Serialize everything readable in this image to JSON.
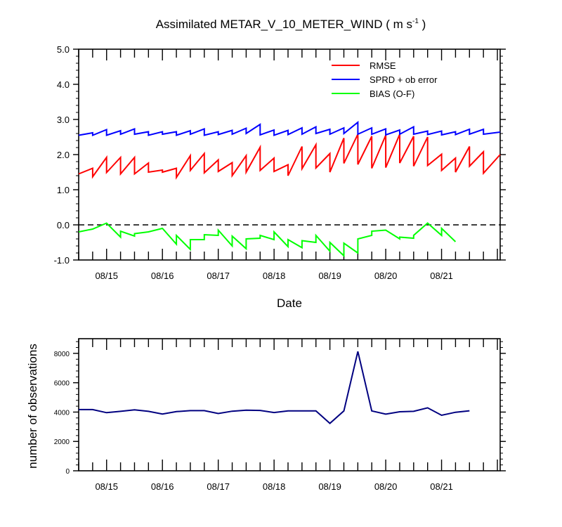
{
  "chart_data": [
    {
      "type": "line",
      "title": "Assimilated METAR_V_10_METER_WIND ( m s",
      "title_sup": "-1",
      "title_end": " )",
      "xlabel": "Date",
      "ylabel": "",
      "x_tick_labels": [
        "08/15",
        "08/16",
        "08/17",
        "08/18",
        "08/19",
        "08/20",
        "08/21"
      ],
      "y_tick_labels": [
        "-1.0",
        "0.0",
        "1.0",
        "2.0",
        "3.0",
        "4.0",
        "5.0"
      ],
      "ylim": [
        -1.0,
        5.0
      ],
      "zero_line": "dashed",
      "legend_position": "top-right",
      "series": [
        {
          "name": "RMSE",
          "color": "#ff0000",
          "points": [
            [
              0.0,
              1.45
            ],
            [
              0.25,
              1.61
            ],
            [
              0.25,
              1.37
            ],
            [
              0.5,
              1.92
            ],
            [
              0.5,
              1.49
            ],
            [
              0.75,
              1.92
            ],
            [
              0.75,
              1.45
            ],
            [
              1.0,
              1.92
            ],
            [
              1.0,
              1.45
            ],
            [
              1.25,
              1.76
            ],
            [
              1.25,
              1.5
            ],
            [
              1.5,
              1.56
            ],
            [
              1.5,
              1.5
            ],
            [
              1.75,
              1.61
            ],
            [
              1.75,
              1.35
            ],
            [
              2.0,
              1.97
            ],
            [
              2.0,
              1.55
            ],
            [
              2.25,
              2.03
            ],
            [
              2.25,
              1.48
            ],
            [
              2.5,
              1.85
            ],
            [
              2.5,
              1.52
            ],
            [
              2.75,
              1.77
            ],
            [
              2.75,
              1.4
            ],
            [
              3.0,
              1.97
            ],
            [
              3.0,
              1.5
            ],
            [
              3.25,
              2.21
            ],
            [
              3.25,
              1.55
            ],
            [
              3.5,
              1.9
            ],
            [
              3.5,
              1.52
            ],
            [
              3.75,
              1.71
            ],
            [
              3.75,
              1.4
            ],
            [
              4.0,
              2.23
            ],
            [
              4.0,
              1.6
            ],
            [
              4.25,
              2.28
            ],
            [
              4.25,
              1.62
            ],
            [
              4.5,
              2.03
            ],
            [
              4.5,
              1.5
            ],
            [
              4.75,
              2.47
            ],
            [
              4.75,
              1.75
            ],
            [
              5.0,
              2.58
            ],
            [
              5.0,
              1.72
            ],
            [
              5.25,
              2.52
            ],
            [
              5.25,
              1.61
            ],
            [
              5.5,
              2.55
            ],
            [
              5.5,
              1.63
            ],
            [
              5.75,
              2.58
            ],
            [
              5.75,
              1.76
            ],
            [
              6.0,
              2.52
            ],
            [
              6.0,
              1.67
            ],
            [
              6.25,
              2.5
            ],
            [
              6.25,
              1.69
            ],
            [
              6.5,
              2.01
            ],
            [
              6.5,
              1.55
            ],
            [
              6.75,
              1.9
            ],
            [
              6.75,
              1.5
            ],
            [
              7.0,
              2.23
            ],
            [
              7.0,
              1.67
            ],
            [
              7.25,
              2.08
            ],
            [
              7.25,
              1.47
            ],
            [
              7.55,
              2.0
            ]
          ]
        },
        {
          "name": "SPRD + ob error",
          "color": "#0000ff",
          "points": [
            [
              0.0,
              2.55
            ],
            [
              0.25,
              2.62
            ],
            [
              0.25,
              2.55
            ],
            [
              0.5,
              2.71
            ],
            [
              0.5,
              2.55
            ],
            [
              0.75,
              2.68
            ],
            [
              0.75,
              2.58
            ],
            [
              1.0,
              2.73
            ],
            [
              1.0,
              2.58
            ],
            [
              1.25,
              2.65
            ],
            [
              1.25,
              2.55
            ],
            [
              1.5,
              2.65
            ],
            [
              1.5,
              2.58
            ],
            [
              1.75,
              2.65
            ],
            [
              1.75,
              2.55
            ],
            [
              2.0,
              2.68
            ],
            [
              2.0,
              2.58
            ],
            [
              2.25,
              2.73
            ],
            [
              2.25,
              2.55
            ],
            [
              2.5,
              2.65
            ],
            [
              2.5,
              2.57
            ],
            [
              2.75,
              2.69
            ],
            [
              2.75,
              2.58
            ],
            [
              3.0,
              2.75
            ],
            [
              3.0,
              2.6
            ],
            [
              3.25,
              2.86
            ],
            [
              3.25,
              2.56
            ],
            [
              3.5,
              2.7
            ],
            [
              3.5,
              2.55
            ],
            [
              3.75,
              2.69
            ],
            [
              3.75,
              2.57
            ],
            [
              4.0,
              2.76
            ],
            [
              4.0,
              2.58
            ],
            [
              4.25,
              2.79
            ],
            [
              4.25,
              2.6
            ],
            [
              4.5,
              2.72
            ],
            [
              4.5,
              2.58
            ],
            [
              4.75,
              2.76
            ],
            [
              4.75,
              2.6
            ],
            [
              5.0,
              2.92
            ],
            [
              5.0,
              2.58
            ],
            [
              5.25,
              2.76
            ],
            [
              5.25,
              2.58
            ],
            [
              5.5,
              2.73
            ],
            [
              5.5,
              2.56
            ],
            [
              5.75,
              2.7
            ],
            [
              5.75,
              2.58
            ],
            [
              6.0,
              2.79
            ],
            [
              6.0,
              2.58
            ],
            [
              6.25,
              2.67
            ],
            [
              6.25,
              2.57
            ],
            [
              6.5,
              2.67
            ],
            [
              6.5,
              2.56
            ],
            [
              6.75,
              2.65
            ],
            [
              6.75,
              2.57
            ],
            [
              7.0,
              2.72
            ],
            [
              7.0,
              2.58
            ],
            [
              7.25,
              2.72
            ],
            [
              7.25,
              2.58
            ],
            [
              7.55,
              2.64
            ]
          ]
        },
        {
          "name": "BIAS (O-F)",
          "color": "#00ff00",
          "points": [
            [
              0.0,
              -0.2
            ],
            [
              0.25,
              -0.12
            ],
            [
              0.5,
              0.05
            ],
            [
              0.75,
              -0.35
            ],
            [
              0.75,
              -0.18
            ],
            [
              1.0,
              -0.32
            ],
            [
              1.0,
              -0.25
            ],
            [
              1.25,
              -0.2
            ],
            [
              1.5,
              -0.1
            ],
            [
              1.75,
              -0.55
            ],
            [
              1.75,
              -0.3
            ],
            [
              2.0,
              -0.7
            ],
            [
              2.0,
              -0.42
            ],
            [
              2.25,
              -0.42
            ],
            [
              2.25,
              -0.28
            ],
            [
              2.5,
              -0.3
            ],
            [
              2.5,
              -0.15
            ],
            [
              2.75,
              -0.6
            ],
            [
              2.75,
              -0.32
            ],
            [
              3.0,
              -0.68
            ],
            [
              3.0,
              -0.4
            ],
            [
              3.25,
              -0.38
            ],
            [
              3.25,
              -0.3
            ],
            [
              3.5,
              -0.42
            ],
            [
              3.5,
              -0.2
            ],
            [
              3.75,
              -0.62
            ],
            [
              3.75,
              -0.42
            ],
            [
              4.0,
              -0.65
            ],
            [
              4.0,
              -0.45
            ],
            [
              4.25,
              -0.5
            ],
            [
              4.25,
              -0.3
            ],
            [
              4.5,
              -0.75
            ],
            [
              4.5,
              -0.5
            ],
            [
              4.75,
              -0.88
            ],
            [
              4.75,
              -0.52
            ],
            [
              5.0,
              -0.8
            ],
            [
              5.0,
              -0.4
            ],
            [
              5.25,
              -0.3
            ],
            [
              5.25,
              -0.18
            ],
            [
              5.5,
              -0.15
            ],
            [
              5.75,
              -0.4
            ],
            [
              5.75,
              -0.35
            ],
            [
              6.0,
              -0.38
            ],
            [
              6.0,
              -0.3
            ],
            [
              6.25,
              0.05
            ],
            [
              6.5,
              -0.3
            ],
            [
              6.5,
              -0.1
            ],
            [
              6.75,
              -0.48
            ]
          ]
        }
      ]
    },
    {
      "type": "line",
      "title": "",
      "xlabel": "",
      "ylabel": "number of observations",
      "x_tick_labels": [
        "08/15",
        "08/16",
        "08/17",
        "08/18",
        "08/19",
        "08/20",
        "08/21"
      ],
      "y_tick_labels": [
        "0",
        "2000",
        "4000",
        "6000",
        "8000"
      ],
      "ylim": [
        0,
        9000
      ],
      "series": [
        {
          "name": "",
          "color": "#000080",
          "points": [
            [
              0.0,
              4170
            ],
            [
              0.25,
              4170
            ],
            [
              0.5,
              3960
            ],
            [
              0.75,
              4050
            ],
            [
              1.0,
              4150
            ],
            [
              1.25,
              4050
            ],
            [
              1.5,
              3870
            ],
            [
              1.75,
              4030
            ],
            [
              2.0,
              4100
            ],
            [
              2.25,
              4100
            ],
            [
              2.5,
              3900
            ],
            [
              2.75,
              4060
            ],
            [
              3.0,
              4130
            ],
            [
              3.25,
              4110
            ],
            [
              3.5,
              3970
            ],
            [
              3.75,
              4080
            ],
            [
              4.0,
              4080
            ],
            [
              4.25,
              4080
            ],
            [
              4.5,
              3230
            ],
            [
              4.75,
              4080
            ],
            [
              5.0,
              8130
            ],
            [
              5.25,
              4080
            ],
            [
              5.5,
              3860
            ],
            [
              5.75,
              4020
            ],
            [
              6.0,
              4050
            ],
            [
              6.25,
              4290
            ],
            [
              6.5,
              3780
            ],
            [
              6.75,
              3990
            ],
            [
              7.0,
              4090
            ]
          ]
        }
      ]
    }
  ]
}
